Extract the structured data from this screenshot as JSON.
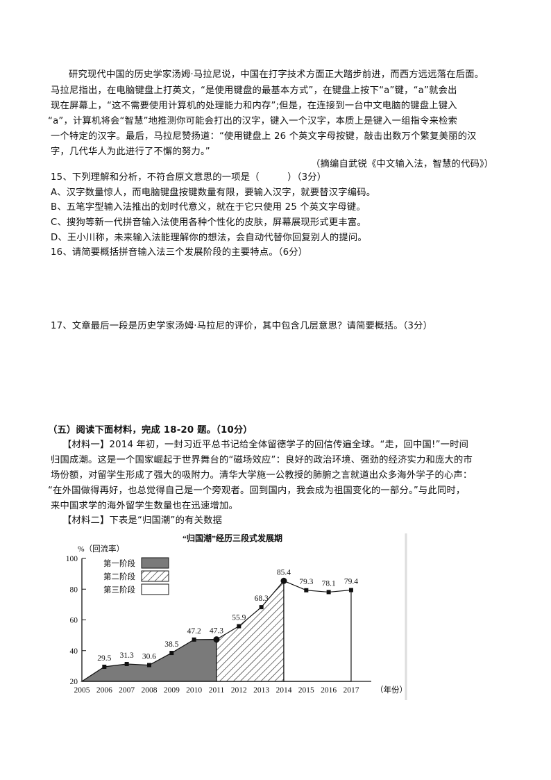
{
  "passage": {
    "lines": [
      "研究现代中国的历史学家汤姆·马拉尼说，中国在打字技术方面正大踏步前进，而西方远远落在后面。",
      "马拉尼指出，在电脑键盘上打英文，“是使用键盘的最基本方式”，在键盘上按下“a”键，“a”就会出",
      "现在屏幕上，“这不需要使用计算机的处理能力和内存”;但是，在连接到一台中文电脑的键盘上键入",
      "“a”，计算机将会“智慧”地推测你可能会打出的汉字，键入一个汉字，本质上是键入一组指令来检索",
      "一个特定的汉字。最后，马拉尼赞扬道：“使用键盘上 26 个英文字母按键，敲击出数万个繁复美丽的汉",
      "字，几代华人为此进行了不懈的努力。”"
    ],
    "source": "（摘编自武锐《中文输入法，智慧的代码》）"
  },
  "questions": {
    "q15": "15、下列理解和分析，不符合原文意思的一项是（　　　）（3分）",
    "q15_options": [
      "A、汉字数量惊人，而电脑键盘按键数量有限，要输入汉字，就要替汉字编码。",
      "B、五笔字型输入法推出的划时代意义，就在于它只使用 25 个英文字母键。",
      "C、搜狗等新一代拼音输入法使用各种个性化的皮肤，屏幕展现形式更丰富。",
      "D、王小川称，未来输入法能理解你的想法，会自动代替你回复别人的提问。"
    ],
    "q16": "16、请简要概括拼音输入法三个发展阶段的主要特点。（6分）",
    "q17": "17、文章最后一段是历史学家汤姆·马拉尼的评价，其中包含几层意思？请简要概括。（3分）"
  },
  "section5": {
    "heading": "（五）阅读下面材料，完成 18-20 题。（10分）",
    "material1_lines": [
      "【材料一】2014 年初，一封习近平总书记给全体留德学子的回信传遍全球。“走，回中国!”一时间",
      "归国成潮。这是一个国家崛起于世界舞台的“磁场效应”：良好的政治环境、强劲的经济实力和庞大的市",
      "场份额，对留学生形成了强大的吸附力。清华大学施一公教授的肺腑之言就道出众多海外学子的心声：",
      "“在外国做得再好，也总觉得自己是一个旁观者。回到国内，我会成为祖国变化的一部分。”与此同时，",
      "来中国求学的海外留学生数量也在迅速增加。"
    ],
    "material2": "【材料二】下表是“归国潮”的有关数据"
  },
  "chart_data": {
    "type": "area",
    "title": "“归国潮”经历三段式发展期",
    "ylabel": "%（回流率）",
    "xlabel": "（年份）",
    "ylim": [
      20,
      100
    ],
    "yticks": [
      20,
      40,
      60,
      80,
      100
    ],
    "x": [
      2005,
      2006,
      2007,
      2008,
      2009,
      2010,
      2011,
      2012,
      2013,
      2014,
      2015,
      2016,
      2017
    ],
    "values": [
      20,
      29.5,
      31.3,
      30.6,
      38.5,
      47.2,
      47.3,
      55.9,
      68.3,
      85.4,
      79.3,
      78.1,
      79.4
    ],
    "data_labels": [
      "",
      "29.5",
      "31.3",
      "30.6",
      "38.5",
      "47.2",
      "47.3",
      "55.9",
      "68.3",
      "85.4",
      "79.3",
      "78.1",
      "79.4"
    ],
    "stages": [
      {
        "name": "第一阶段",
        "from": 2005,
        "to": 2011,
        "fill": "solid-gray",
        "color": "#7a7a7a"
      },
      {
        "name": "第二阶段",
        "from": 2011,
        "to": 2014,
        "fill": "hatched"
      },
      {
        "name": "第三阶段",
        "from": 2014,
        "to": 2017,
        "fill": "white"
      }
    ],
    "legend_position": "top-left",
    "grid": false
  }
}
